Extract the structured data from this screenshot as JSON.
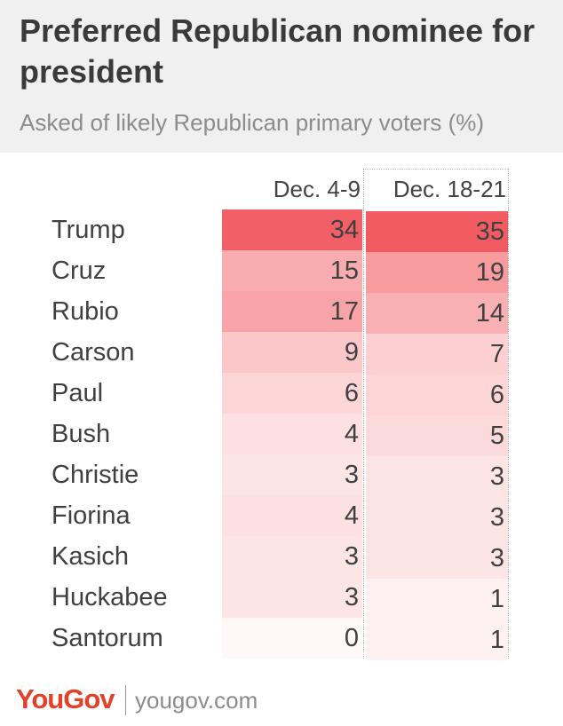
{
  "header": {
    "title": "Preferred Republican nominee for president",
    "subtitle": "Asked of likely Republican primary voters (%)"
  },
  "chart_data": {
    "type": "table",
    "title": "Preferred Republican nominee for president",
    "subtitle": "Asked of likely Republican primary voters (%)",
    "columns": [
      "Dec. 4-9",
      "Dec. 18-21"
    ],
    "categories": [
      "Trump",
      "Cruz",
      "Rubio",
      "Carson",
      "Paul",
      "Bush",
      "Christie",
      "Fiorina",
      "Kasich",
      "Huckabee",
      "Santorum"
    ],
    "series": [
      {
        "name": "Dec. 4-9",
        "values": [
          34,
          15,
          17,
          9,
          6,
          4,
          3,
          4,
          3,
          3,
          0
        ]
      },
      {
        "name": "Dec. 18-21",
        "values": [
          35,
          19,
          14,
          7,
          6,
          5,
          3,
          3,
          3,
          1,
          1
        ]
      }
    ],
    "heat_color": "#f35b62",
    "heat_base": "#ffffff"
  },
  "footer": {
    "logo": "YouGov",
    "url": "yougov.com"
  },
  "colors": {
    "header_bg": "#f0f0f0",
    "logo": "#e2412a"
  }
}
